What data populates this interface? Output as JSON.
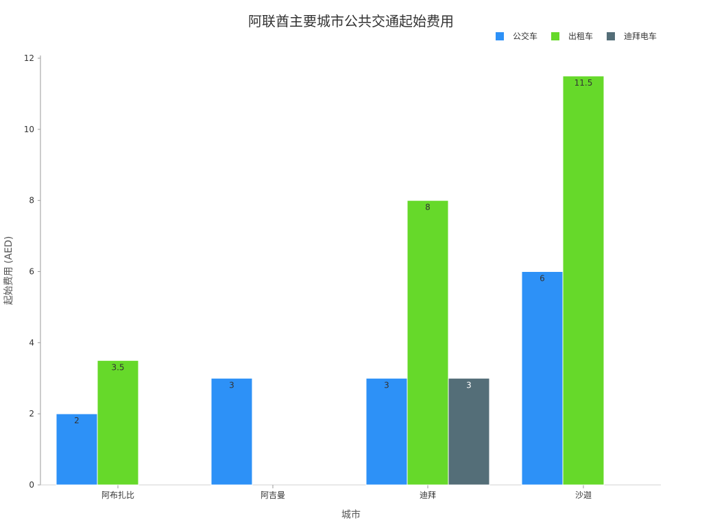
{
  "chart_data": {
    "type": "bar",
    "title": "阿联酋主要城市公共交通起始费用",
    "xlabel": "城市",
    "ylabel": "起始费用 (AED)",
    "categories": [
      "阿布扎比",
      "阿吉曼",
      "迪拜",
      "沙迦"
    ],
    "series": [
      {
        "name": "公交车",
        "values": [
          2,
          3,
          3,
          6
        ],
        "labels": [
          "2",
          "3",
          "3",
          "6"
        ],
        "color": "#2d91f7"
      },
      {
        "name": "出租车",
        "values": [
          3.5,
          null,
          8,
          11.5
        ],
        "labels": [
          "3.5",
          "",
          "8",
          "11.5"
        ],
        "color": "#66d92a"
      },
      {
        "name": "迪拜电车",
        "values": [
          null,
          null,
          3,
          null
        ],
        "labels": [
          "",
          "",
          "3",
          ""
        ],
        "color": "#546e78"
      }
    ],
    "ylim": [
      0,
      12
    ],
    "yticks": [
      0,
      2,
      4,
      6,
      8,
      10,
      12
    ],
    "grid": false,
    "legend_position": "top-right"
  }
}
